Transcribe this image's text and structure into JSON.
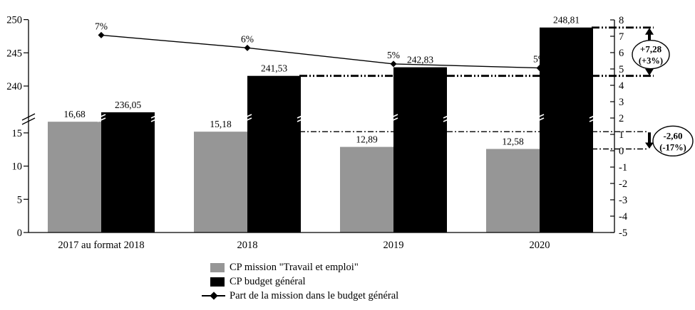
{
  "chart_data": {
    "type": "bar",
    "subtype": "grouped-bars-with-line-overlay-and-broken-axis",
    "categories": [
      "2017 au format 2018",
      "2018",
      "2019",
      "2020"
    ],
    "bar_series": [
      {
        "name": "CP mission \"Travail et emploi\"",
        "color": "#969696",
        "values": [
          16.68,
          15.18,
          12.89,
          12.58
        ],
        "labels": [
          "16,68",
          "15,18",
          "12,89",
          "12,58"
        ]
      },
      {
        "name": "CP budget général",
        "color": "#000000",
        "values": [
          236.05,
          241.53,
          242.83,
          248.81
        ],
        "labels": [
          "236,05",
          "241,53",
          "242,83",
          "248,81"
        ]
      }
    ],
    "line_series": {
      "name": "Part de la mission dans le budget général",
      "values_pct": [
        7.07,
        6.29,
        5.31,
        5.06
      ],
      "labels": [
        "7%",
        "6%",
        "5%",
        "5%"
      ],
      "marker": "diamond"
    },
    "left_axis": {
      "broken": true,
      "upper_values": [
        250,
        245,
        240
      ],
      "upper_labels": [
        "250",
        "245",
        "240"
      ],
      "lower_values": [
        15,
        10,
        5,
        0
      ],
      "lower_labels": [
        "15",
        "10",
        "5",
        "0"
      ]
    },
    "right_axis": {
      "values": [
        8,
        7,
        6,
        5,
        4,
        3,
        2,
        1,
        0,
        -1,
        -2,
        -3,
        -4,
        -5
      ],
      "labels": [
        "8",
        "7",
        "6",
        "5",
        "4",
        "3",
        "2",
        "1",
        "0",
        "-1",
        "-2",
        "-3",
        "-4",
        "-5"
      ]
    },
    "annotations": [
      {
        "id": "budget-general-change",
        "line1": "+7,28",
        "line2": "(+3%)",
        "axis": "top",
        "from": 241.53,
        "to": 248.81,
        "arrow": "double"
      },
      {
        "id": "mission-change",
        "line1": "-2,60",
        "line2": "(-17%)",
        "axis": "bottom",
        "from": 15.18,
        "to": 12.58,
        "arrow": "down"
      }
    ],
    "grid": "off",
    "legend_position": "bottom"
  },
  "legend": {
    "items": [
      {
        "label": "CP mission \"Travail et emploi\"",
        "swatch": "gray-square"
      },
      {
        "label": "CP budget général",
        "swatch": "black-square"
      },
      {
        "label": "Part de la mission dans le budget général",
        "swatch": "line-with-diamond"
      }
    ]
  },
  "colors": {
    "bar_gray": "#969696",
    "bar_black": "#000000",
    "background": "#ffffff"
  }
}
